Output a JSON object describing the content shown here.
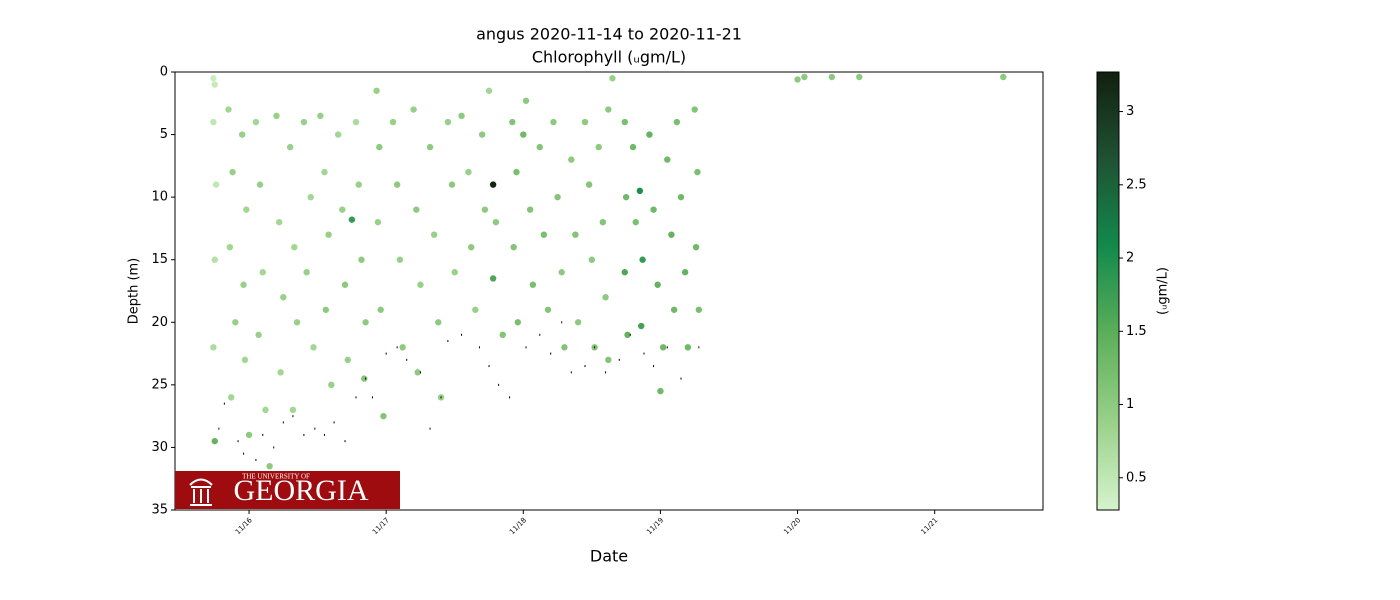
{
  "chart_data": {
    "type": "scatter",
    "title": "angus 2020-11-14 to 2020-11-21",
    "subtitle": "Chlorophyll (ᵤgm/L)",
    "x_label": "Date",
    "y_label": "Depth (m)",
    "colorbar_label": "(ᵤgm/L)",
    "y_inverted": true,
    "xlim": [
      15.46,
      21.79
    ],
    "ylim": [
      0,
      35
    ],
    "xticks": [
      {
        "value": 16,
        "label": "11/16"
      },
      {
        "value": 17,
        "label": "11/17"
      },
      {
        "value": 18,
        "label": "11/18"
      },
      {
        "value": 19,
        "label": "11/19"
      },
      {
        "value": 20,
        "label": "11/20"
      },
      {
        "value": 21,
        "label": "11/21"
      }
    ],
    "yticks": [
      0,
      5,
      10,
      15,
      20,
      25,
      30,
      35
    ],
    "clim": [
      0.28,
      3.27
    ],
    "cticks": [
      0.5,
      1.0,
      1.5,
      2.0,
      2.5,
      3.0
    ],
    "colormap": [
      "#d5f4cc",
      "#99d18a",
      "#5daf5a",
      "#138a4c",
      "#1f5233",
      "#11200f"
    ],
    "series": [
      {
        "x": [
          15.74,
          15.75,
          15.74,
          15.76,
          15.75,
          15.74,
          15.75,
          15.85,
          15.88,
          15.86,
          15.9,
          15.87,
          15.95,
          15.98,
          15.96,
          15.97,
          16.0,
          16.05,
          16.08,
          16.1,
          16.07,
          16.12,
          16.15,
          16.2,
          16.22,
          16.25,
          16.23,
          16.3,
          16.33,
          16.35,
          16.32,
          16.4,
          16.45,
          16.42,
          16.47,
          16.52,
          16.55,
          16.58,
          16.56,
          16.6,
          16.65,
          16.68,
          16.7,
          16.72,
          16.75,
          16.78,
          16.8,
          16.82,
          16.85,
          16.84,
          16.93,
          16.95,
          16.94,
          16.96,
          16.98,
          17.05,
          17.08,
          17.1,
          17.12,
          17.2,
          17.22,
          17.25,
          17.23,
          17.32,
          17.35,
          17.38,
          17.4,
          17.45,
          17.48,
          17.5,
          17.55,
          17.6,
          17.62,
          17.65,
          17.7,
          17.72,
          17.75,
          17.78,
          17.78,
          17.8,
          17.85,
          17.92,
          17.95,
          17.93,
          17.96,
          18.0,
          18.02,
          18.05,
          18.07,
          18.12,
          18.15,
          18.18,
          18.22,
          18.25,
          18.28,
          18.3,
          18.35,
          18.38,
          18.4,
          18.45,
          18.48,
          18.5,
          18.52,
          18.55,
          18.58,
          18.6,
          18.62,
          18.62,
          18.65,
          18.74,
          18.75,
          18.74,
          18.76,
          18.8,
          18.82,
          18.85,
          18.87,
          18.86,
          18.92,
          18.95,
          18.98,
          19.0,
          19.02,
          19.05,
          19.08,
          19.1,
          19.12,
          19.15,
          19.18,
          19.2,
          19.25,
          19.27,
          19.26,
          19.28,
          20.0,
          20.05,
          20.25,
          20.45,
          21.5
        ],
        "values": [
          0.5,
          1.0,
          4,
          9,
          15,
          22,
          29.5,
          3,
          8,
          14,
          20,
          26,
          5,
          11,
          17,
          23,
          29,
          4,
          9,
          16,
          21,
          27,
          31.5,
          3.5,
          12,
          18,
          24,
          6,
          14,
          20,
          27,
          4,
          10,
          16,
          22,
          3.5,
          8,
          13,
          19,
          25,
          5,
          11,
          17,
          23,
          11.8,
          4,
          9,
          15,
          20,
          24.5,
          1.5,
          6,
          12,
          19,
          27.5,
          4,
          9,
          15,
          22,
          3,
          11,
          17,
          24,
          6,
          13,
          20,
          26,
          4,
          9,
          16,
          3.5,
          8,
          14,
          19,
          5,
          11,
          1.5,
          9,
          16.5,
          12,
          21,
          4,
          8,
          14,
          20,
          5,
          2.3,
          11,
          17,
          6,
          13,
          19,
          4,
          10,
          16,
          22,
          7,
          13,
          20,
          4,
          9,
          15,
          22,
          6,
          12,
          18,
          3,
          23,
          0.5,
          4,
          10,
          16,
          21,
          6,
          12,
          9.5,
          15,
          20.3,
          5,
          11,
          17,
          25.5,
          22,
          7,
          13,
          19,
          4,
          10,
          16,
          22,
          3,
          8,
          14,
          19,
          0.6,
          0.4,
          0.4,
          0.4,
          0.4
        ],
        "c": [
          0.4,
          0.45,
          0.5,
          0.5,
          0.6,
          0.7,
          1.4,
          0.8,
          0.9,
          0.8,
          0.9,
          0.8,
          0.9,
          0.8,
          0.9,
          0.8,
          1.0,
          0.8,
          0.9,
          0.8,
          0.9,
          0.8,
          1.0,
          0.9,
          0.8,
          0.9,
          0.8,
          0.9,
          0.8,
          0.9,
          0.8,
          0.9,
          0.8,
          0.9,
          0.8,
          0.9,
          0.8,
          0.9,
          1.0,
          0.9,
          0.8,
          0.9,
          1.0,
          0.9,
          1.8,
          0.7,
          0.9,
          1.0,
          1.0,
          1.1,
          0.9,
          1.0,
          0.9,
          1.0,
          1.1,
          0.9,
          1.0,
          0.9,
          1.0,
          0.9,
          1.0,
          0.9,
          1.0,
          1.0,
          0.9,
          1.0,
          0.9,
          0.9,
          1.0,
          0.9,
          1.0,
          0.9,
          1.0,
          0.9,
          1.0,
          1.0,
          0.8,
          3.2,
          1.6,
          1.0,
          1.1,
          1.1,
          1.2,
          1.1,
          1.2,
          1.3,
          1.0,
          1.1,
          1.2,
          1.1,
          1.2,
          1.1,
          1.0,
          1.1,
          1.0,
          1.1,
          1.0,
          1.1,
          1.0,
          1.0,
          1.1,
          1.0,
          1.1,
          1.0,
          1.1,
          1.0,
          1.0,
          1.1,
          0.9,
          1.2,
          1.3,
          1.6,
          1.4,
          1.3,
          1.2,
          2.0,
          1.8,
          1.7,
          1.4,
          1.3,
          1.4,
          1.3,
          1.3,
          1.3,
          1.4,
          1.3,
          1.2,
          1.3,
          1.4,
          1.3,
          1.1,
          1.2,
          1.3,
          1.2,
          1.0,
          1.0,
          1.0,
          1.0,
          1.0
        ]
      },
      {
        "color": "#000000",
        "x": [
          15.78,
          15.82,
          15.92,
          15.96,
          16.05,
          16.1,
          16.18,
          16.25,
          16.32,
          16.4,
          16.48,
          16.55,
          16.62,
          16.7,
          16.78,
          16.85,
          16.9,
          17.0,
          17.08,
          17.15,
          17.25,
          17.32,
          17.4,
          17.45,
          17.55,
          17.68,
          17.75,
          17.82,
          17.9,
          18.02,
          18.12,
          18.2,
          18.28,
          18.35,
          18.45,
          18.52,
          18.6,
          18.7,
          18.78,
          18.88,
          18.95,
          19.05,
          19.15,
          19.28
        ],
        "values": [
          28.5,
          26.5,
          29.5,
          30.5,
          31,
          29,
          30,
          28,
          27.5,
          29,
          28.5,
          29,
          28,
          29.5,
          26,
          24.5,
          26,
          22.5,
          22,
          23,
          24,
          28.5,
          26,
          21.5,
          21,
          22,
          23.5,
          25,
          26,
          22,
          21,
          22.5,
          20,
          24,
          23.5,
          22,
          24,
          23,
          21,
          22.5,
          23.5,
          22,
          24.5,
          22
        ]
      }
    ]
  },
  "logo": {
    "line1": "THE UNIVERSITY OF",
    "line2": "GEORGIA",
    "color": "#9e0c0f"
  }
}
